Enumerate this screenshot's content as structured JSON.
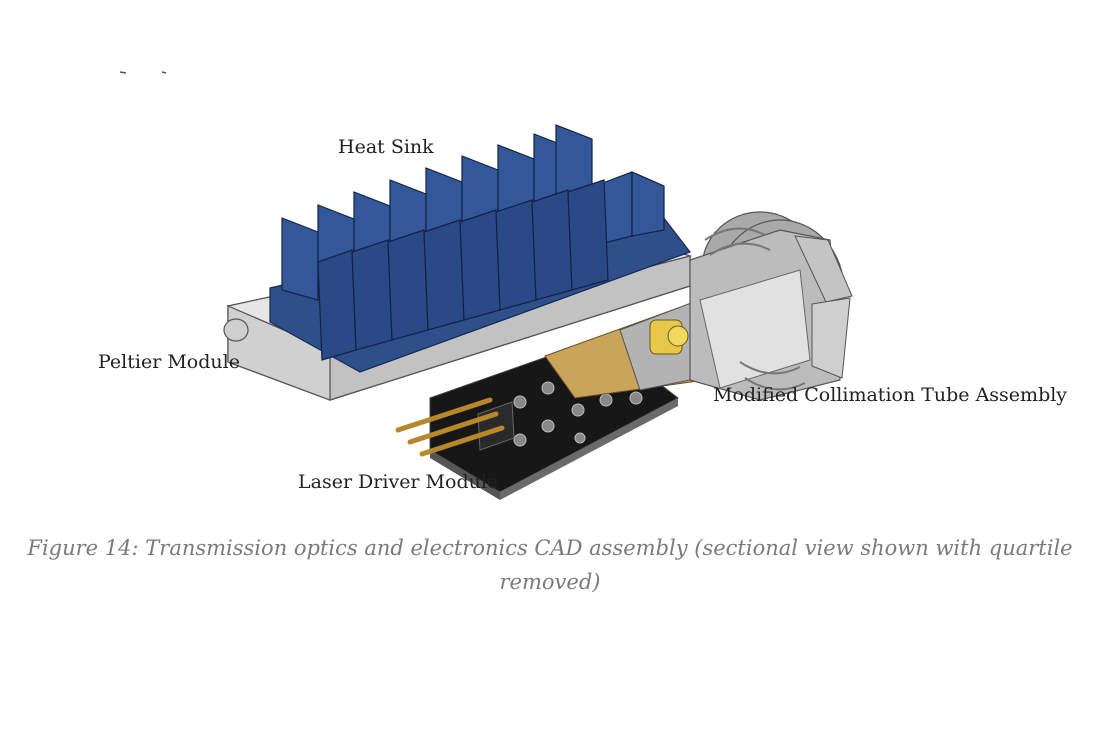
{
  "figure": {
    "labels": {
      "heat_sink": "Heat Sink",
      "peltier": "Peltier Module",
      "collimation": "Modified Collimation Tube Assembly",
      "driver": "Laser Driver Module"
    },
    "caption": {
      "prefix": "Figure 14:",
      "text": "Transmission optics and electronics CAD assembly (sectional view shown with quartile removed)"
    },
    "colors": {
      "heat_sink": "#2e4f8a",
      "plate": "#d9d9d9",
      "collimation": "#b8b8b8",
      "pcb": "#1a1a1a",
      "brass": "#c9a55a",
      "gold": "#e8c84a"
    }
  }
}
